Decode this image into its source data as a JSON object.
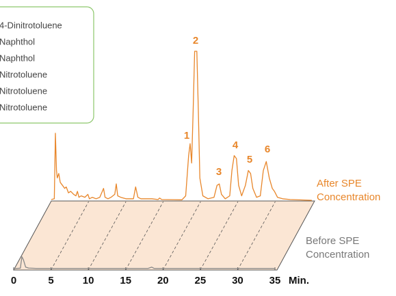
{
  "chart_data": {
    "type": "chromatogram",
    "legend_items": [
      "4-Dinitrotoluene",
      "Naphthol",
      "Naphthol",
      "Nitrotoluene",
      "Nitrotoluene",
      "Nitrotoluene"
    ],
    "peak_labels": [
      "1",
      "2",
      "3",
      "4",
      "5",
      "6"
    ],
    "xlabel": "Min.",
    "xlim": [
      0,
      35
    ],
    "xticks": [
      0,
      5,
      10,
      15,
      20,
      25,
      30,
      35
    ],
    "ylim": [
      0,
      100
    ],
    "series": [
      {
        "name": "After SPE Concentration",
        "color": "#e8862a",
        "x": [
          0,
          0.4,
          0.55,
          0.7,
          0.8,
          1.0,
          1.2,
          1.5,
          1.8,
          2.0,
          2.3,
          2.6,
          3.0,
          3.3,
          3.5,
          3.7,
          4.0,
          4.5,
          4.9,
          5.1,
          5.5,
          6.0,
          6.5,
          7.0,
          7.2,
          7.6,
          8.0,
          8.5,
          8.7,
          8.9,
          9.3,
          10.0,
          11.0,
          11.3,
          11.6,
          12.0,
          13.5,
          14.3,
          14.5,
          14.8,
          17.5,
          18.0,
          18.4,
          18.6,
          18.8,
          19.0,
          19.2,
          19.5,
          19.7,
          19.9,
          20.3,
          21.0,
          21.8,
          22.2,
          22.5,
          22.8,
          23.3,
          23.9,
          24.2,
          24.5,
          24.8,
          25.1,
          25.5,
          26.0,
          26.4,
          26.7,
          27.0,
          27.5,
          28.0,
          28.4,
          28.8,
          29.2,
          29.6,
          29.9,
          30.3,
          31,
          32,
          34.9
        ],
        "values": [
          0.5,
          1,
          45,
          20,
          15,
          18,
          12,
          10,
          8,
          9,
          5,
          6,
          4,
          3,
          6,
          2,
          3,
          2,
          4,
          1,
          2,
          1,
          2,
          8,
          2,
          1,
          2,
          4,
          11,
          3,
          2,
          1,
          1,
          9,
          2,
          1,
          1,
          0.5,
          1.5,
          0.5,
          0.3,
          3,
          30,
          38,
          25,
          60,
          100,
          100,
          60,
          15,
          3,
          1,
          2,
          10,
          11,
          4,
          1,
          3,
          20,
          30,
          28,
          10,
          3,
          10,
          20,
          18,
          8,
          2,
          3,
          20,
          26,
          15,
          8,
          6,
          2,
          1,
          0.5,
          0
        ]
      },
      {
        "name": "Before SPE Concentration",
        "color": "#888888",
        "x": [
          0,
          0.9,
          1.1,
          1.3,
          1.6,
          2.0,
          3.0,
          18.0,
          18.5,
          18.8,
          35
        ],
        "values": [
          0,
          0.3,
          8,
          6,
          1,
          0.4,
          0.2,
          0.2,
          1,
          0.2,
          0.2
        ]
      }
    ]
  }
}
